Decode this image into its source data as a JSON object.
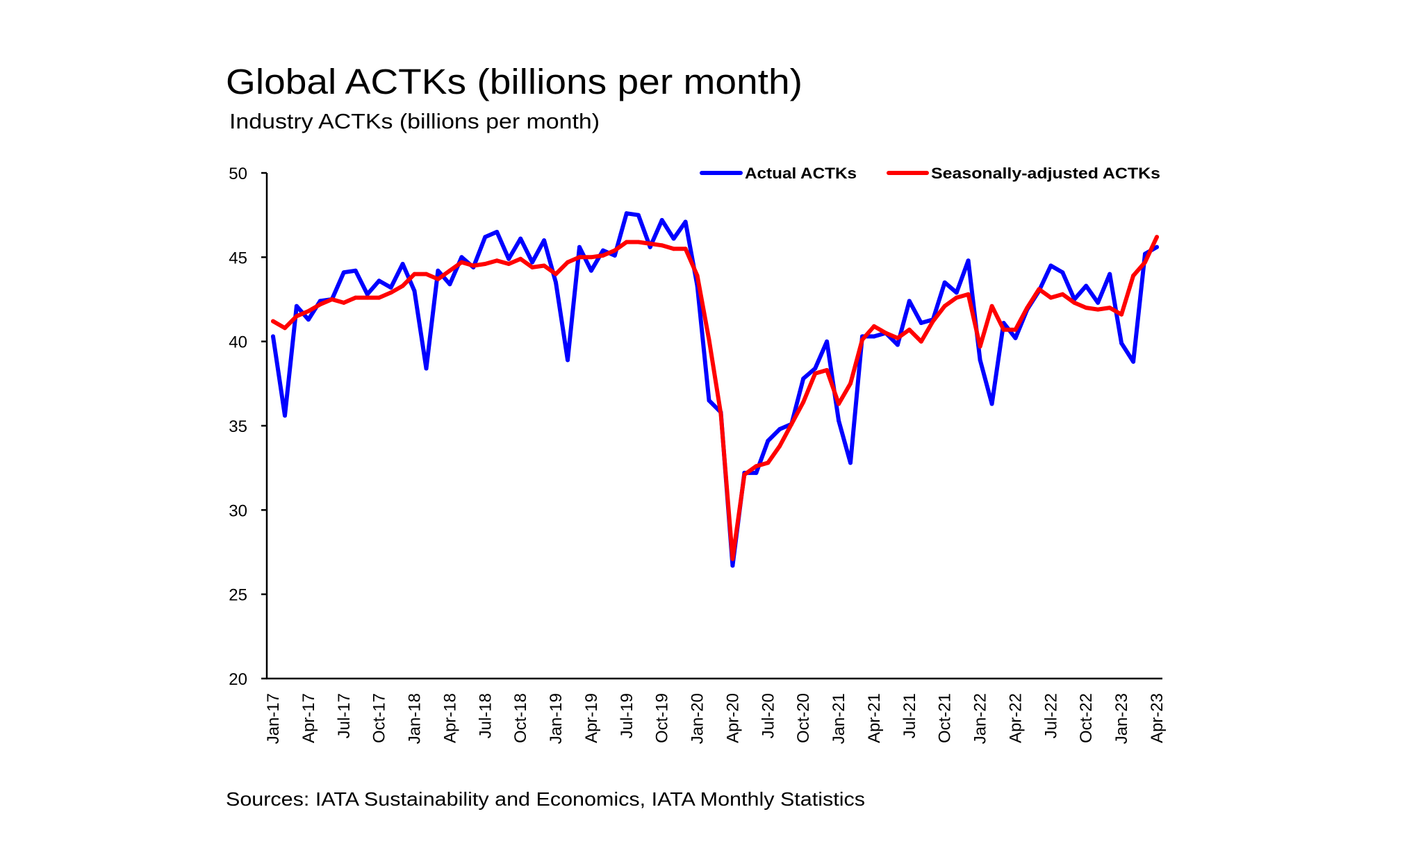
{
  "chart_data": {
    "type": "line",
    "title": "Global ACTKs (billions per month)",
    "subtitle": "Industry ACTKs (billions per month)",
    "source": "Sources: IATA Sustainability and Economics, IATA Monthly Statistics",
    "xlabel": "",
    "ylabel": "",
    "ylim": [
      20,
      50
    ],
    "yticks": [
      "20",
      "25",
      "30",
      "35",
      "40",
      "45",
      "50"
    ],
    "ytick_values": [
      20,
      25,
      30,
      35,
      40,
      45,
      50
    ],
    "x_tick_every_n_months": 3,
    "xtick_labels": [
      "Jan-17",
      "Apr-17",
      "Jul-17",
      "Oct-17",
      "Jan-18",
      "Apr-18",
      "Jul-18",
      "Oct-18",
      "Jan-19",
      "Apr-19",
      "Jul-19",
      "Oct-19",
      "Jan-20",
      "Apr-20",
      "Jul-20",
      "Oct-20",
      "Jan-21",
      "Apr-21",
      "Jul-21",
      "Oct-21",
      "Jan-22",
      "Apr-22",
      "Jul-22",
      "Oct-22",
      "Jan-23",
      "Apr-23"
    ],
    "x_start": "Jan-17",
    "x_end": "Apr-23",
    "grid": false,
    "legend_position": "top-right",
    "series": [
      {
        "name": "Actual ACTKs",
        "color": "#0000ff",
        "values": [
          40.3,
          35.6,
          42.1,
          41.3,
          42.4,
          42.5,
          44.1,
          44.2,
          42.8,
          43.6,
          43.2,
          44.6,
          43.0,
          38.4,
          44.2,
          43.4,
          45.0,
          44.4,
          46.2,
          46.5,
          44.9,
          46.1,
          44.7,
          46.0,
          43.5,
          38.9,
          45.6,
          44.2,
          45.4,
          45.1,
          47.6,
          47.5,
          45.6,
          47.2,
          46.1,
          47.1,
          43.3,
          36.5,
          35.8,
          26.7,
          32.2,
          32.2,
          34.1,
          34.8,
          35.1,
          37.8,
          38.4,
          40.0,
          35.3,
          32.8,
          40.3,
          40.3,
          40.5,
          39.8,
          42.4,
          41.1,
          41.3,
          43.5,
          42.9,
          44.8,
          38.9,
          36.3,
          41.1,
          40.2,
          41.9,
          43.0,
          44.5,
          44.1,
          42.5,
          43.3,
          42.3,
          44.0,
          39.9,
          38.8,
          45.2,
          45.6
        ]
      },
      {
        "name": "Seasonally-adjusted ACTKs",
        "color": "#ff0000",
        "values": [
          41.2,
          40.8,
          41.5,
          41.8,
          42.2,
          42.5,
          42.3,
          42.6,
          42.6,
          42.6,
          42.9,
          43.3,
          44.0,
          44.0,
          43.7,
          44.2,
          44.7,
          44.5,
          44.6,
          44.8,
          44.6,
          44.9,
          44.4,
          44.5,
          44.0,
          44.7,
          45.0,
          45.0,
          45.1,
          45.4,
          45.9,
          45.9,
          45.8,
          45.7,
          45.5,
          45.5,
          43.9,
          40.1,
          35.7,
          27.1,
          32.1,
          32.6,
          32.8,
          33.8,
          35.1,
          36.4,
          38.1,
          38.3,
          36.3,
          37.5,
          40.1,
          40.9,
          40.5,
          40.2,
          40.7,
          40.0,
          41.2,
          42.1,
          42.6,
          42.8,
          39.7,
          42.1,
          40.7,
          40.7,
          42.0,
          43.1,
          42.6,
          42.8,
          42.3,
          42.0,
          41.9,
          42.0,
          41.6,
          43.9,
          44.7,
          46.2
        ]
      }
    ]
  }
}
